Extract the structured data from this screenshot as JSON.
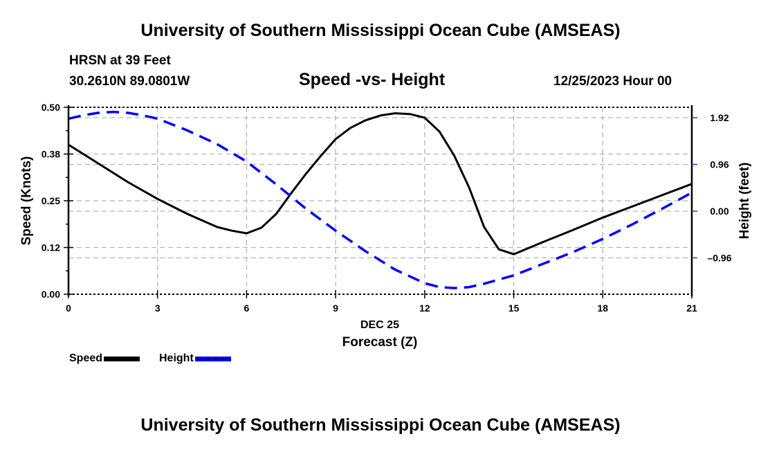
{
  "header": {
    "title_top": "University of Southern Mississippi Ocean Cube (AMSEAS)",
    "title_bottom": "University of Southern Mississippi Ocean Cube (AMSEAS)",
    "station": "HRSN at 39 Feet",
    "coordinates": "30.2610N  89.0801W",
    "chart_title": "Speed -vs- Height",
    "date_label": "12/25/2023 Hour 00"
  },
  "colors": {
    "speed": "#000000",
    "height": "#0000ff",
    "grid": "#b4b4b4"
  },
  "chart_data": {
    "type": "line",
    "title": "Speed -vs- Height",
    "xlabel": "Forecast (Z)",
    "xlabel_date": "DEC 25",
    "ylabel": "Speed (Knots)",
    "y2label": "Height (feet)",
    "xlim": [
      0,
      21
    ],
    "ylim": [
      0,
      0.5
    ],
    "y2lim": [
      -1.82,
      2.02
    ],
    "x_ticks": [
      0,
      3,
      6,
      9,
      12,
      15,
      18,
      21
    ],
    "x_tick_labels": [
      "0",
      "3",
      "6",
      "9",
      "12",
      "15",
      "18",
      "21"
    ],
    "y_ticks": [
      0.0,
      0.125,
      0.25,
      0.375,
      0.5
    ],
    "y_tick_labels": [
      "0.00",
      "0.12",
      "0.25",
      "0.38",
      "0.50"
    ],
    "y2_ticks": [
      -0.96,
      0.0,
      0.96,
      1.92
    ],
    "y2_tick_labels": [
      "–0.96",
      "0.00",
      "0.96",
      "1.92"
    ],
    "grid": true,
    "legend": [
      "Speed",
      "Height"
    ],
    "legend_position": "bottom-left",
    "series": [
      {
        "name": "Speed",
        "axis": "left",
        "style": "solid",
        "x": [
          0,
          1,
          2,
          3,
          4,
          5,
          5.5,
          6,
          6.5,
          7,
          7.5,
          8,
          8.5,
          9,
          9.5,
          10,
          10.5,
          11,
          11.5,
          12,
          12.5,
          13,
          13.5,
          14,
          14.5,
          15,
          16,
          17,
          18,
          19,
          20,
          21
        ],
        "values": [
          0.4,
          0.35,
          0.3,
          0.255,
          0.215,
          0.18,
          0.17,
          0.163,
          0.178,
          0.215,
          0.27,
          0.322,
          0.37,
          0.415,
          0.445,
          0.465,
          0.478,
          0.484,
          0.482,
          0.472,
          0.435,
          0.37,
          0.285,
          0.18,
          0.12,
          0.107,
          0.14,
          0.172,
          0.205,
          0.235,
          0.265,
          0.295
        ]
      },
      {
        "name": "Height",
        "axis": "right",
        "style": "dashed",
        "x": [
          0,
          0.5,
          1,
          1.5,
          2,
          2.5,
          3,
          4,
          5,
          6,
          7,
          7.5,
          8,
          9,
          10,
          11,
          12,
          12.5,
          13,
          13.5,
          14,
          15,
          16,
          17,
          18,
          19,
          20,
          21
        ],
        "values": [
          1.9,
          1.97,
          2.02,
          2.04,
          2.02,
          1.97,
          1.9,
          1.66,
          1.38,
          1.02,
          0.55,
          0.3,
          0.05,
          -0.4,
          -0.82,
          -1.2,
          -1.48,
          -1.56,
          -1.58,
          -1.56,
          -1.49,
          -1.32,
          -1.08,
          -0.84,
          -0.57,
          -0.27,
          0.05,
          0.38
        ]
      }
    ]
  }
}
